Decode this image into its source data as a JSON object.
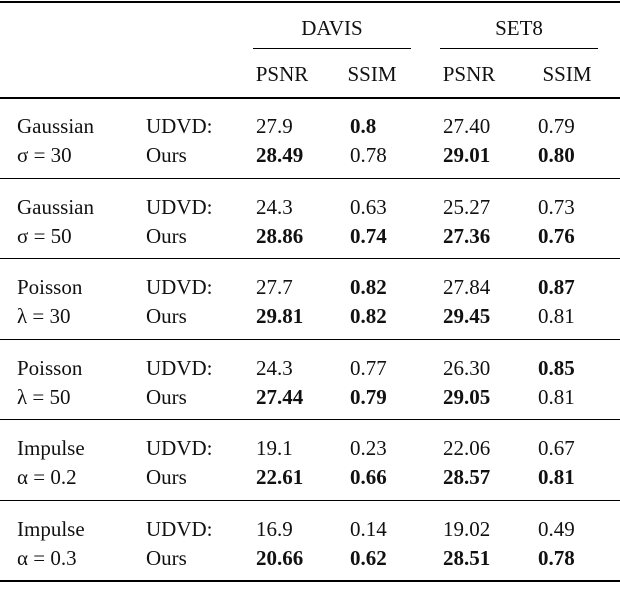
{
  "header": {
    "datasets": [
      "DAVIS",
      "SET8"
    ],
    "metrics": [
      "PSNR",
      "SSIM",
      "PSNR",
      "SSIM"
    ]
  },
  "groups": [
    {
      "noise": "Gaussian",
      "param": "σ = 30",
      "rows": [
        {
          "method": "UDVD:",
          "values": [
            "27.9",
            "0.8",
            "27.40",
            "0.79"
          ],
          "bold": [
            false,
            true,
            false,
            false
          ]
        },
        {
          "method": "Ours",
          "values": [
            "28.49",
            "0.78",
            "29.01",
            "0.80"
          ],
          "bold": [
            true,
            false,
            true,
            true
          ]
        }
      ]
    },
    {
      "noise": "Gaussian",
      "param": "σ = 50",
      "rows": [
        {
          "method": "UDVD:",
          "values": [
            "24.3",
            "0.63",
            "25.27",
            "0.73"
          ],
          "bold": [
            false,
            false,
            false,
            false
          ]
        },
        {
          "method": "Ours",
          "values": [
            "28.86",
            "0.74",
            "27.36",
            "0.76"
          ],
          "bold": [
            true,
            true,
            true,
            true
          ]
        }
      ]
    },
    {
      "noise": "Poisson",
      "param": "λ = 30",
      "rows": [
        {
          "method": "UDVD:",
          "values": [
            "27.7",
            "0.82",
            "27.84",
            "0.87"
          ],
          "bold": [
            false,
            true,
            false,
            true
          ]
        },
        {
          "method": "Ours",
          "values": [
            "29.81",
            "0.82",
            "29.45",
            "0.81"
          ],
          "bold": [
            true,
            true,
            true,
            false
          ]
        }
      ]
    },
    {
      "noise": "Poisson",
      "param": "λ = 50",
      "rows": [
        {
          "method": "UDVD:",
          "values": [
            "24.3",
            "0.77",
            "26.30",
            "0.85"
          ],
          "bold": [
            false,
            false,
            false,
            true
          ]
        },
        {
          "method": "Ours",
          "values": [
            "27.44",
            "0.79",
            "29.05",
            "0.81"
          ],
          "bold": [
            true,
            true,
            true,
            false
          ]
        }
      ]
    },
    {
      "noise": "Impulse",
      "param": "α = 0.2",
      "rows": [
        {
          "method": "UDVD:",
          "values": [
            "19.1",
            "0.23",
            "22.06",
            "0.67"
          ],
          "bold": [
            false,
            false,
            false,
            false
          ]
        },
        {
          "method": "Ours",
          "values": [
            "22.61",
            "0.66",
            "28.57",
            "0.81"
          ],
          "bold": [
            true,
            true,
            true,
            true
          ]
        }
      ]
    },
    {
      "noise": "Impulse",
      "param": "α = 0.3",
      "rows": [
        {
          "method": "UDVD:",
          "values": [
            "16.9",
            "0.14",
            "19.02",
            "0.49"
          ],
          "bold": [
            false,
            false,
            false,
            false
          ]
        },
        {
          "method": "Ours",
          "values": [
            "20.66",
            "0.62",
            "28.51",
            "0.78"
          ],
          "bold": [
            true,
            true,
            true,
            true
          ]
        }
      ]
    }
  ]
}
